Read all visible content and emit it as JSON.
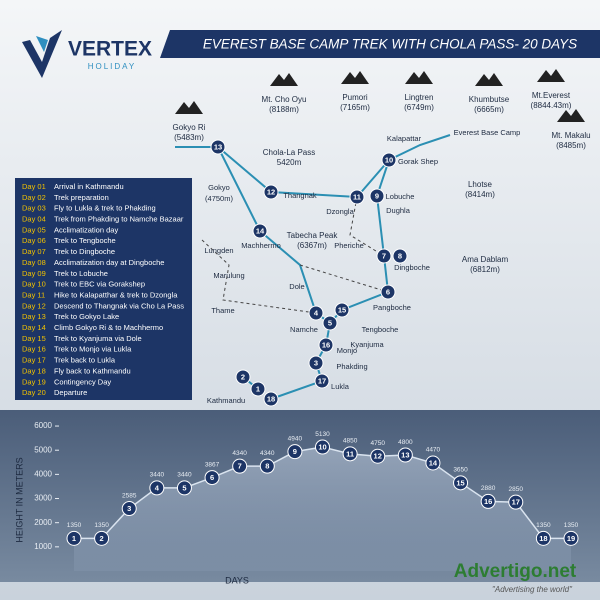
{
  "header": {
    "brand": "VERTEX",
    "tagline": "HOLIDAY",
    "title": "EVEREST BASE CAMP TREK WITH CHOLA PASS- 20 DAYS"
  },
  "itinerary": [
    {
      "day": "Day 01",
      "text": "Arrival in Kathmandu"
    },
    {
      "day": "Day 02",
      "text": "Trek preparation"
    },
    {
      "day": "Day 03",
      "text": "Fly to Lukla & trek to Phakding"
    },
    {
      "day": "Day 04",
      "text": "Trek from Phakding to Namche Bazaar"
    },
    {
      "day": "Day 05",
      "text": "Acclimatization day"
    },
    {
      "day": "Day 06",
      "text": "Trek to Tengboche"
    },
    {
      "day": "Day 07",
      "text": "Trek to Dingboche"
    },
    {
      "day": "Day 08",
      "text": "Acclimatization day at Dingboche"
    },
    {
      "day": "Day 09",
      "text": "Trek to Lobuche"
    },
    {
      "day": "Day 10",
      "text": "Trek to EBC via Gorakshep"
    },
    {
      "day": "Day 11",
      "text": "Hike to Kalapatthar & trek to Dzongla"
    },
    {
      "day": "Day 12",
      "text": "Descend to Thangnak via Cho La Pass"
    },
    {
      "day": "Day 13",
      "text": "Trek to Gokyo Lake"
    },
    {
      "day": "Day 14",
      "text": "Climb Gokyo Ri & to Machhermo"
    },
    {
      "day": "Day 15",
      "text": "Trek to Kyanjuma via Dole"
    },
    {
      "day": "Day 16",
      "text": "Trek to Monjo via Lukla"
    },
    {
      "day": "Day 17",
      "text": "Trek back to Lukla"
    },
    {
      "day": "Day 18",
      "text": "Fly back to Kathmandu"
    },
    {
      "day": "Day 19",
      "text": "Contingency Day"
    },
    {
      "day": "Day 20",
      "text": "Departure"
    }
  ],
  "peaks": [
    {
      "name": "Mt. Cho Oyu",
      "height": "(8188m)"
    },
    {
      "name": "Pumori",
      "height": "(7165m)"
    },
    {
      "name": "Lingtren",
      "height": "(6749m)"
    },
    {
      "name": "Khumbutse",
      "height": "(6665m)"
    },
    {
      "name": "Mt.Everest",
      "height": "(8844.43m)"
    },
    {
      "name": "Mt. Makalu",
      "height": "(8485m)"
    },
    {
      "name": "Gokyo Ri",
      "height": "(5483m)"
    },
    {
      "name": "Chola-La Pass",
      "height": "5420m"
    },
    {
      "name": "Lhotse",
      "height": "(8414m)"
    },
    {
      "name": "Tabecha Peak",
      "height": "(6367m)"
    },
    {
      "name": "Ama Dablam",
      "height": "(6812m)"
    }
  ],
  "places": [
    "Kalapattar",
    "Everest Base Camp",
    "Gorak Shep",
    "Lobuche",
    "Dughla",
    "Dzongla",
    "Thangnak",
    "Gokyo",
    "(4750m)",
    "Pheriche",
    "Dingboche",
    "Pangboche",
    "Lungden",
    "Machhermo",
    "Marulung",
    "Dole",
    "Tengboche",
    "Kyanjuma",
    "Thame",
    "Namche",
    "Monjo",
    "Phakding",
    "Lukla",
    "Kathmandu"
  ],
  "route_stops": [
    13,
    12,
    11,
    10,
    9,
    14,
    7,
    8,
    6,
    5,
    4,
    15,
    16,
    3,
    17,
    2,
    1,
    18
  ],
  "chart_data": {
    "type": "line",
    "categories": [
      1,
      2,
      3,
      4,
      5,
      6,
      7,
      8,
      9,
      10,
      11,
      12,
      13,
      14,
      15,
      16,
      17,
      18,
      19
    ],
    "values": [
      1350,
      1350,
      2585,
      3440,
      3440,
      3867,
      4340,
      4340,
      4940,
      5130,
      4850,
      4750,
      4800,
      4470,
      3650,
      2880,
      2850,
      1350,
      1350
    ],
    "ylim": [
      0,
      6250
    ],
    "yticks": [
      1000,
      2000,
      3000,
      4000,
      5000,
      6000
    ],
    "y_label": "HEIGHT IN METERS",
    "x_label": "DAYS",
    "color": "#1d3566"
  },
  "watermark": {
    "name": "Advertigo.net",
    "slogan": "\"Advertising the world\""
  }
}
